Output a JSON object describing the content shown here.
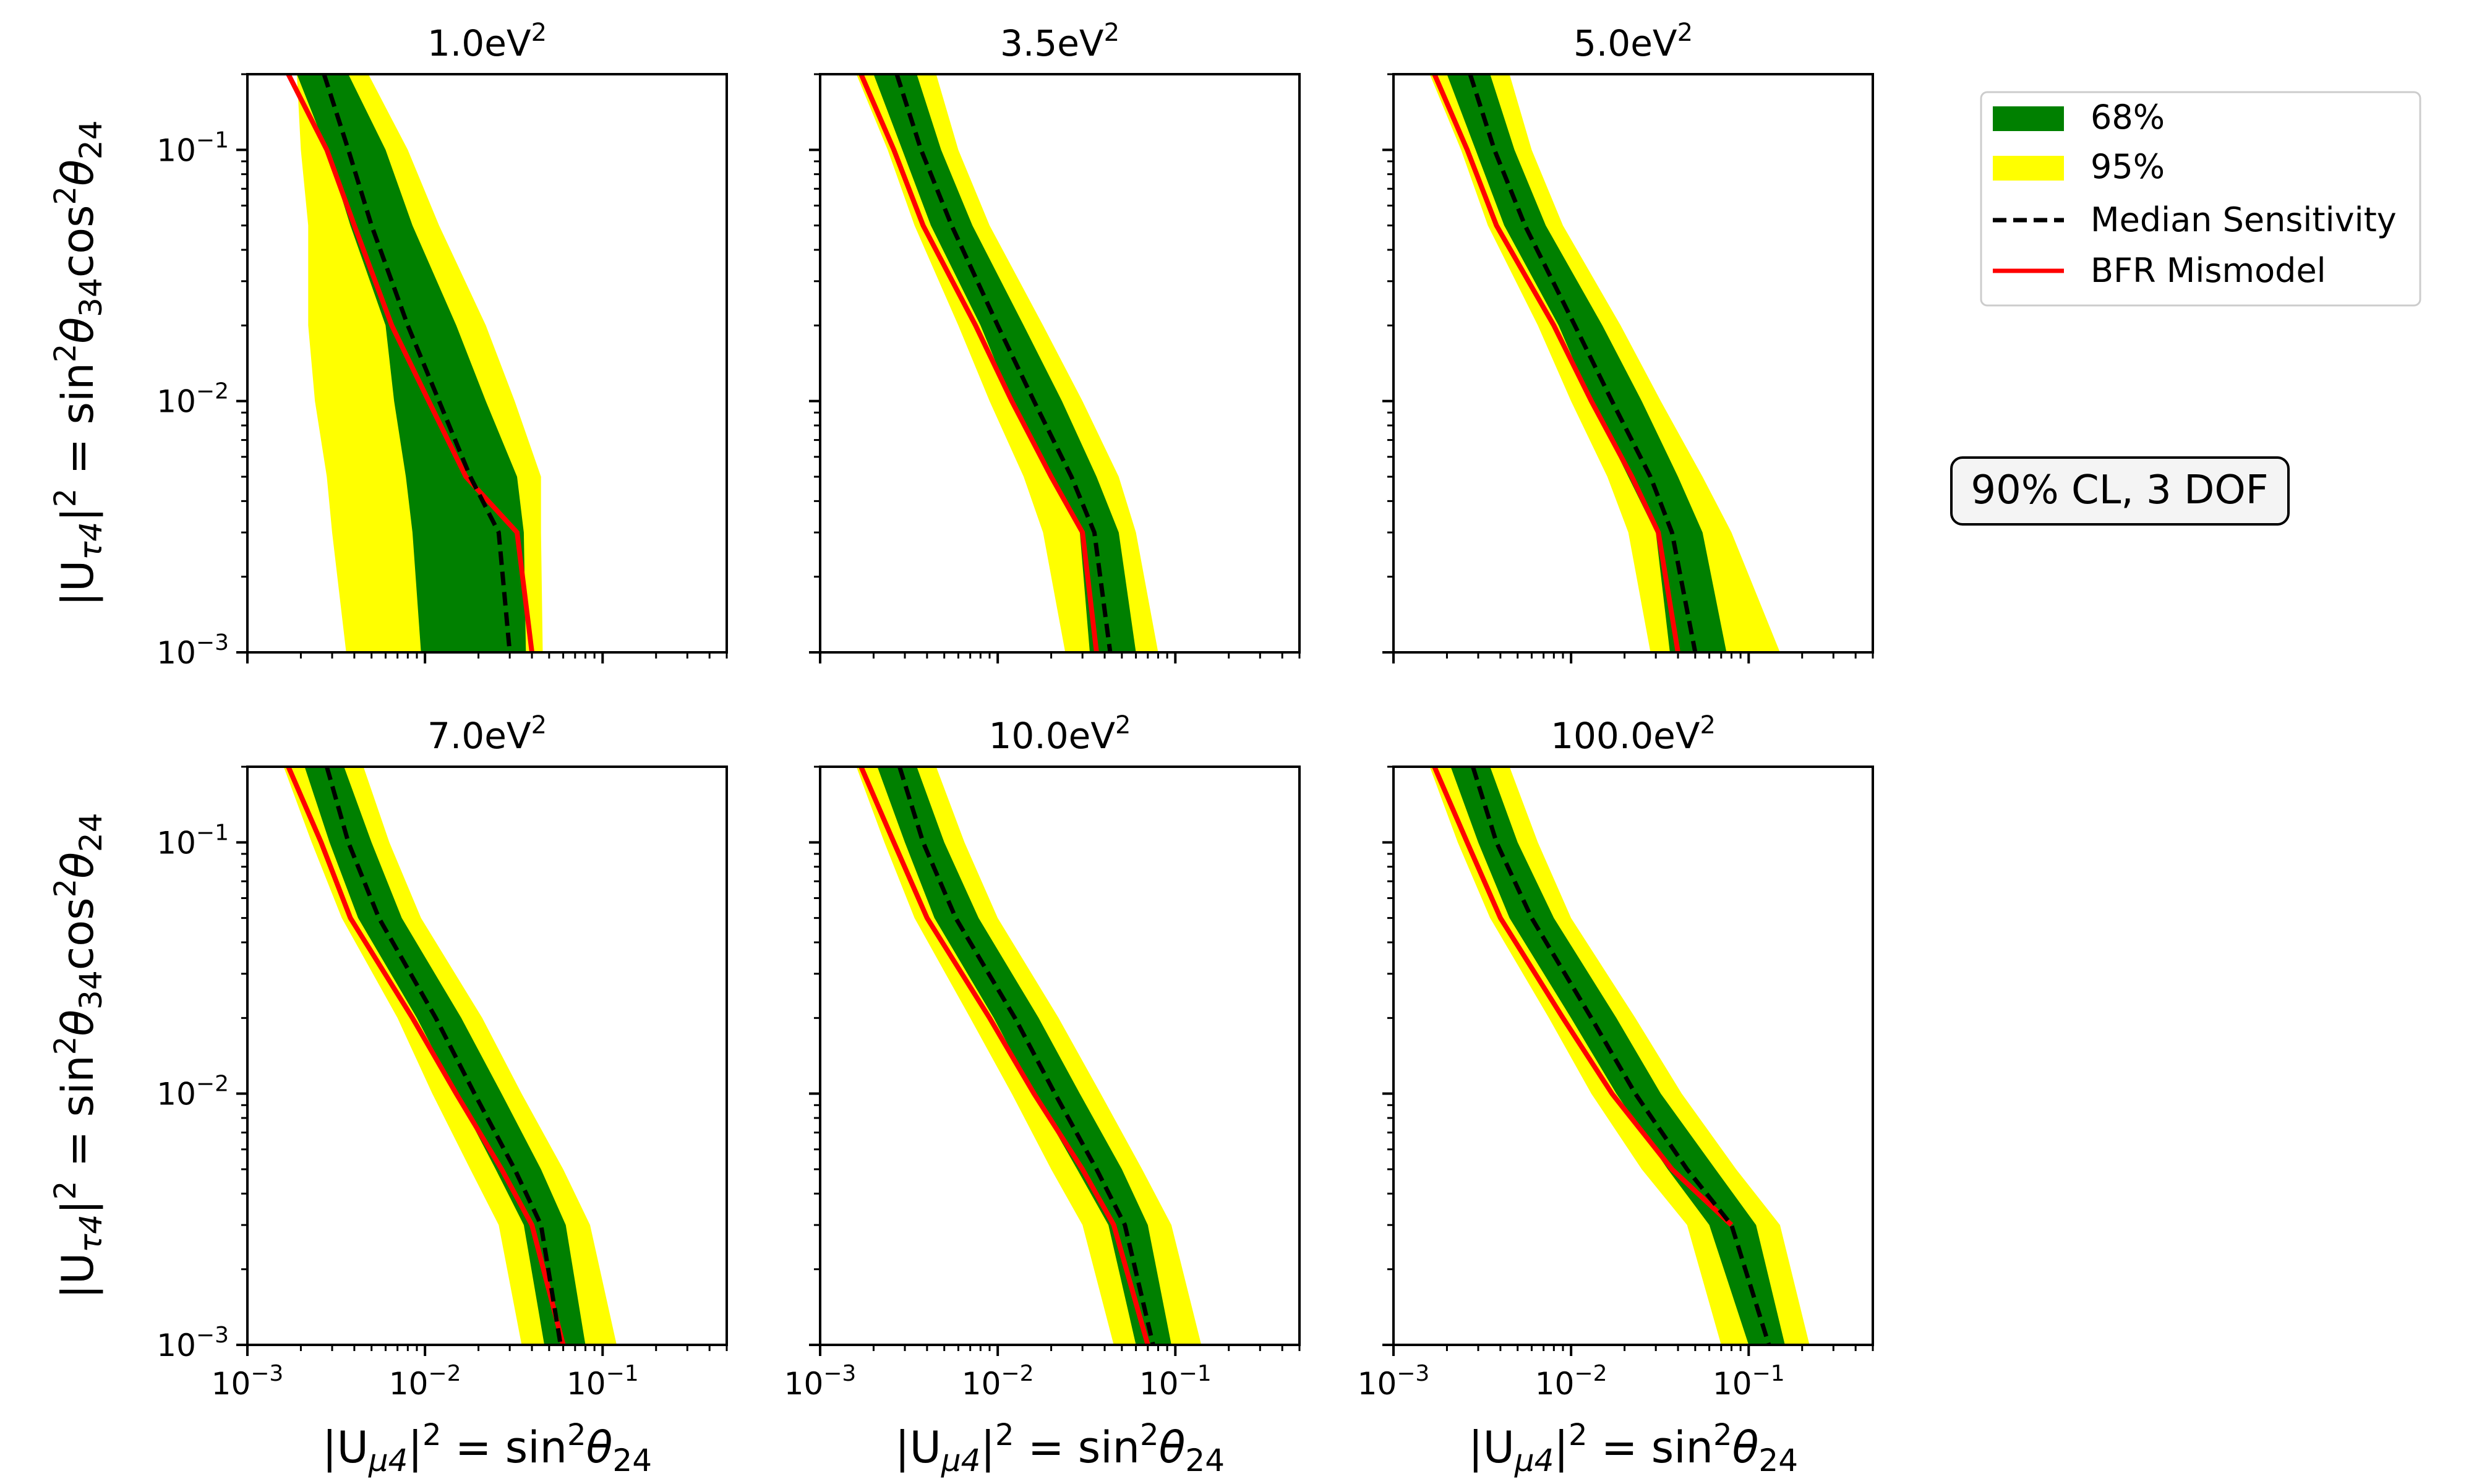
{
  "figure": {
    "annotation": "90% CL, 3 DOF",
    "x_label": {
      "base": "|U",
      "sub": "μ4",
      "mid": "|",
      "sup": "2",
      "eq": " = sin",
      "sup2": "2",
      "theta": "θ",
      "sub2": "24"
    },
    "y_label": {
      "base": "|U",
      "sub": "τ4",
      "mid": "|",
      "sup": "2",
      "eq": " = sin",
      "sup2": "2",
      "theta": "θ",
      "sub2": "34",
      "cos": "cos",
      "sup3": "2",
      "theta2": "θ",
      "sub3": "24"
    },
    "x_tick_labels": [
      {
        "base": "10",
        "exp": "−3"
      },
      {
        "base": "10",
        "exp": "−2"
      },
      {
        "base": "10",
        "exp": "−1"
      }
    ],
    "y_tick_labels": [
      {
        "base": "10",
        "exp": "−1"
      },
      {
        "base": "10",
        "exp": "−2"
      },
      {
        "base": "10",
        "exp": "−3"
      }
    ]
  },
  "legend": {
    "position": "upper-right, outside plots",
    "items": [
      {
        "label": "68%",
        "kind": "band",
        "color": "#008000"
      },
      {
        "label": "95%",
        "kind": "band",
        "color": "#ffff00"
      },
      {
        "label": "Median Sensitivity",
        "kind": "dashed-line",
        "color": "#000000"
      },
      {
        "label": "BFR Mismodel",
        "kind": "line",
        "color": "#ff0000"
      }
    ]
  },
  "colors": {
    "band68": "#008000",
    "band95": "#ffff00",
    "median": "#000000",
    "bfr": "#ff0000"
  },
  "chart_data": [
    {
      "type": "line",
      "title": {
        "base": "1.0eV",
        "sup": "2"
      },
      "xscale": "log",
      "yscale": "log",
      "xlim": [
        0.001,
        0.5
      ],
      "ylim": [
        0.001,
        0.2
      ],
      "y": [
        0.2,
        0.1,
        0.05,
        0.02,
        0.01,
        0.005,
        0.003,
        0.001
      ],
      "median": [
        0.0027,
        0.0037,
        0.005,
        0.008,
        0.012,
        0.018,
        0.026,
        0.03
      ],
      "bfr": [
        0.0017,
        0.0028,
        0.004,
        0.0065,
        0.0105,
        0.017,
        0.033,
        0.04
      ],
      "band68": {
        "lo": [
          0.0019,
          0.0028,
          0.0038,
          0.006,
          0.0067,
          0.0078,
          0.0085,
          0.0095
        ],
        "hi": [
          0.0037,
          0.006,
          0.0085,
          0.015,
          0.022,
          0.033,
          0.036,
          0.037
        ]
      },
      "band95": {
        "lo": [
          0.0019,
          0.002,
          0.0022,
          0.0022,
          0.0024,
          0.0028,
          0.003,
          0.0036
        ],
        "hi": [
          0.0048,
          0.008,
          0.012,
          0.022,
          0.032,
          0.045,
          0.045,
          0.046
        ]
      }
    },
    {
      "type": "line",
      "title": {
        "base": "3.5eV",
        "sup": "2"
      },
      "xscale": "log",
      "yscale": "log",
      "xlim": [
        0.001,
        0.5
      ],
      "ylim": [
        0.001,
        0.2
      ],
      "y": [
        0.2,
        0.1,
        0.05,
        0.02,
        0.01,
        0.005,
        0.003,
        0.001
      ],
      "median": [
        0.0027,
        0.0037,
        0.0055,
        0.01,
        0.016,
        0.026,
        0.035,
        0.043
      ],
      "bfr": [
        0.0017,
        0.0026,
        0.0038,
        0.0075,
        0.012,
        0.02,
        0.03,
        0.036
      ],
      "band68": {
        "lo": [
          0.002,
          0.0029,
          0.0042,
          0.008,
          0.012,
          0.02,
          0.029,
          0.033
        ],
        "hi": [
          0.0035,
          0.0048,
          0.0072,
          0.014,
          0.023,
          0.036,
          0.048,
          0.06
        ]
      },
      "band95": {
        "lo": [
          0.0016,
          0.0024,
          0.0034,
          0.006,
          0.009,
          0.014,
          0.018,
          0.024
        ],
        "hi": [
          0.0045,
          0.006,
          0.009,
          0.018,
          0.03,
          0.048,
          0.06,
          0.08
        ]
      }
    },
    {
      "type": "line",
      "title": {
        "base": "5.0eV",
        "sup": "2"
      },
      "xscale": "log",
      "yscale": "log",
      "xlim": [
        0.001,
        0.5
      ],
      "ylim": [
        0.001,
        0.2
      ],
      "y": [
        0.2,
        0.1,
        0.05,
        0.02,
        0.01,
        0.005,
        0.003,
        0.001
      ],
      "median": [
        0.0027,
        0.0037,
        0.0055,
        0.0105,
        0.017,
        0.028,
        0.037,
        0.05
      ],
      "bfr": [
        0.0017,
        0.0026,
        0.0038,
        0.008,
        0.013,
        0.022,
        0.031,
        0.04
      ],
      "band68": {
        "lo": [
          0.002,
          0.0029,
          0.0042,
          0.0085,
          0.013,
          0.021,
          0.03,
          0.036
        ],
        "hi": [
          0.0035,
          0.0048,
          0.0072,
          0.015,
          0.025,
          0.04,
          0.055,
          0.075
        ]
      },
      "band95": {
        "lo": [
          0.0016,
          0.0024,
          0.0034,
          0.0065,
          0.01,
          0.016,
          0.021,
          0.028
        ],
        "hi": [
          0.0045,
          0.006,
          0.009,
          0.019,
          0.032,
          0.055,
          0.08,
          0.15
        ]
      }
    },
    {
      "type": "line",
      "title": {
        "base": "7.0eV",
        "sup": "2"
      },
      "xscale": "log",
      "yscale": "log",
      "xlim": [
        0.001,
        0.5
      ],
      "ylim": [
        0.001,
        0.2
      ],
      "y": [
        0.2,
        0.1,
        0.05,
        0.02,
        0.01,
        0.005,
        0.003,
        0.001
      ],
      "median": [
        0.0028,
        0.0037,
        0.0055,
        0.0115,
        0.019,
        0.032,
        0.045,
        0.058
      ],
      "bfr": [
        0.0017,
        0.0026,
        0.0038,
        0.0085,
        0.015,
        0.027,
        0.04,
        0.06
      ],
      "band68": {
        "lo": [
          0.0021,
          0.0029,
          0.0042,
          0.009,
          0.015,
          0.025,
          0.036,
          0.047
        ],
        "hi": [
          0.0035,
          0.005,
          0.0074,
          0.016,
          0.027,
          0.045,
          0.062,
          0.08
        ]
      },
      "band95": {
        "lo": [
          0.0016,
          0.0023,
          0.0034,
          0.007,
          0.011,
          0.018,
          0.026,
          0.035
        ],
        "hi": [
          0.0045,
          0.0063,
          0.0095,
          0.021,
          0.035,
          0.06,
          0.085,
          0.12
        ]
      }
    },
    {
      "type": "line",
      "title": {
        "base": "10.0eV",
        "sup": "2"
      },
      "xscale": "log",
      "yscale": "log",
      "xlim": [
        0.001,
        0.5
      ],
      "ylim": [
        0.001,
        0.2
      ],
      "y": [
        0.2,
        0.1,
        0.05,
        0.02,
        0.01,
        0.005,
        0.003,
        0.001
      ],
      "median": [
        0.0028,
        0.0038,
        0.0058,
        0.0125,
        0.021,
        0.036,
        0.052,
        0.075
      ],
      "bfr": [
        0.0017,
        0.0026,
        0.004,
        0.009,
        0.016,
        0.03,
        0.045,
        0.07
      ],
      "band68": {
        "lo": [
          0.0021,
          0.003,
          0.0044,
          0.0095,
          0.016,
          0.028,
          0.042,
          0.06
        ],
        "hi": [
          0.0035,
          0.005,
          0.0078,
          0.017,
          0.029,
          0.05,
          0.07,
          0.095
        ]
      },
      "band95": {
        "lo": [
          0.0016,
          0.0023,
          0.0034,
          0.007,
          0.012,
          0.02,
          0.03,
          0.045
        ],
        "hi": [
          0.0045,
          0.0065,
          0.01,
          0.022,
          0.038,
          0.065,
          0.095,
          0.14
        ]
      }
    },
    {
      "type": "line",
      "title": {
        "base": "100.0eV",
        "sup": "2"
      },
      "xscale": "log",
      "yscale": "log",
      "xlim": [
        0.001,
        0.5
      ],
      "ylim": [
        0.001,
        0.2
      ],
      "y": [
        0.2,
        0.1,
        0.05,
        0.02,
        0.01,
        0.005,
        0.003,
        0.001
      ],
      "median": [
        0.0028,
        0.0038,
        0.006,
        0.013,
        0.023,
        0.045,
        0.08,
        0.13
      ],
      "bfr": [
        0.0017,
        0.0026,
        0.004,
        0.009,
        0.017,
        0.037,
        0.08,
        null
      ],
      "band68": {
        "lo": [
          0.0021,
          0.003,
          0.0045,
          0.01,
          0.018,
          0.035,
          0.06,
          0.1
        ],
        "hi": [
          0.0035,
          0.005,
          0.008,
          0.018,
          0.032,
          0.065,
          0.11,
          0.16
        ]
      },
      "band95": {
        "lo": [
          0.0016,
          0.0023,
          0.0035,
          0.0075,
          0.013,
          0.025,
          0.045,
          0.07
        ],
        "hi": [
          0.0045,
          0.0065,
          0.01,
          0.023,
          0.042,
          0.085,
          0.15,
          0.22
        ]
      }
    }
  ]
}
